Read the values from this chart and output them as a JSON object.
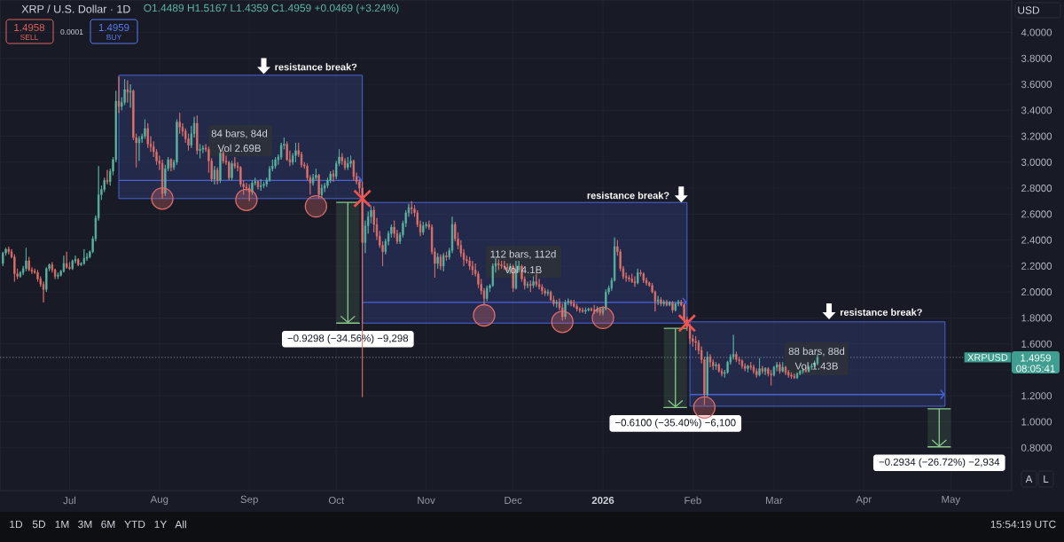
{
  "chart_data": {
    "type": "candlestick",
    "title": "XRP / U.S. Dollar · 1D",
    "subtitle": "O1.4489 H1.5167 L1.4359 C1.4959 +0.0469 (+3.24%)",
    "x": [
      "2025-06-08",
      "2025-06-09",
      "2025-06-10",
      "2025-06-11",
      "2025-06-12",
      "2025-06-13",
      "2025-06-14",
      "2025-06-15",
      "2025-06-16",
      "2025-06-17",
      "2025-06-18",
      "2025-06-19",
      "2025-06-20",
      "2025-06-21",
      "2025-06-22",
      "2025-06-23",
      "2025-06-24",
      "2025-06-25",
      "2025-06-26",
      "2025-06-27",
      "2025-06-28",
      "2025-06-29",
      "2025-06-30",
      "2025-07-01",
      "2025-07-02",
      "2025-07-03",
      "2025-07-04",
      "2025-07-05",
      "2025-07-06",
      "2025-07-07",
      "2025-07-08",
      "2025-07-09",
      "2025-07-10",
      "2025-07-11",
      "2025-07-12",
      "2025-07-13",
      "2025-07-14",
      "2025-07-15",
      "2025-07-16",
      "2025-07-17",
      "2025-07-18",
      "2025-07-19",
      "2025-07-20",
      "2025-07-21",
      "2025-07-22",
      "2025-07-23",
      "2025-07-24",
      "2025-07-25",
      "2025-07-26",
      "2025-07-27",
      "2025-07-28",
      "2025-07-29",
      "2025-07-30",
      "2025-07-31",
      "2025-08-01",
      "2025-08-02",
      "2025-08-03",
      "2025-08-04",
      "2025-08-05",
      "2025-08-06",
      "2025-08-07",
      "2025-08-08",
      "2025-08-09",
      "2025-08-10",
      "2025-08-11",
      "2025-08-12",
      "2025-08-13",
      "2025-08-14",
      "2025-08-15",
      "2025-08-16",
      "2025-08-17",
      "2025-08-18",
      "2025-08-19",
      "2025-08-20",
      "2025-08-21",
      "2025-08-22",
      "2025-08-23",
      "2025-08-24",
      "2025-08-25",
      "2025-08-26",
      "2025-08-27",
      "2025-08-28",
      "2025-08-29",
      "2025-08-30",
      "2025-08-31",
      "2025-09-01",
      "2025-09-02",
      "2025-09-03",
      "2025-09-04",
      "2025-09-05",
      "2025-09-06",
      "2025-09-07",
      "2025-09-08",
      "2025-09-09",
      "2025-09-10",
      "2025-09-11",
      "2025-09-12",
      "2025-09-13",
      "2025-09-14",
      "2025-09-15",
      "2025-09-16",
      "2025-09-17",
      "2025-09-18",
      "2025-09-19",
      "2025-09-20",
      "2025-09-21",
      "2025-09-22",
      "2025-09-23",
      "2025-09-24",
      "2025-09-25",
      "2025-09-26",
      "2025-09-27",
      "2025-09-28",
      "2025-09-29",
      "2025-09-30",
      "2025-10-01",
      "2025-10-02",
      "2025-10-03",
      "2025-10-04",
      "2025-10-05",
      "2025-10-06",
      "2025-10-07",
      "2025-10-08",
      "2025-10-09",
      "2025-10-10",
      "2025-10-11",
      "2025-10-12",
      "2025-10-13",
      "2025-10-14",
      "2025-10-15",
      "2025-10-16",
      "2025-10-17",
      "2025-10-18",
      "2025-10-19",
      "2025-10-20",
      "2025-10-21",
      "2025-10-22",
      "2025-10-23",
      "2025-10-24",
      "2025-10-25",
      "2025-10-26",
      "2025-10-27",
      "2025-10-28",
      "2025-10-29",
      "2025-10-30",
      "2025-10-31",
      "2025-11-01",
      "2025-11-02",
      "2025-11-03",
      "2025-11-04",
      "2025-11-05",
      "2025-11-06",
      "2025-11-07",
      "2025-11-08",
      "2025-11-09",
      "2025-11-10",
      "2025-11-11",
      "2025-11-12",
      "2025-11-13",
      "2025-11-14",
      "2025-11-15",
      "2025-11-16",
      "2025-11-17",
      "2025-11-18",
      "2025-11-19",
      "2025-11-20",
      "2025-11-21",
      "2025-11-22",
      "2025-11-23",
      "2025-11-24",
      "2025-11-25",
      "2025-11-26",
      "2025-11-27",
      "2025-11-28",
      "2025-11-29",
      "2025-11-30",
      "2025-12-01",
      "2025-12-02",
      "2025-12-03",
      "2025-12-04",
      "2025-12-05",
      "2025-12-06",
      "2025-12-07",
      "2025-12-08",
      "2025-12-09",
      "2025-12-10",
      "2025-12-11",
      "2025-12-12",
      "2025-12-13",
      "2025-12-14",
      "2025-12-15",
      "2025-12-16",
      "2025-12-17",
      "2025-12-18",
      "2025-12-19",
      "2025-12-20",
      "2025-12-21",
      "2025-12-22",
      "2025-12-23",
      "2025-12-24",
      "2025-12-25",
      "2025-12-26",
      "2025-12-27",
      "2025-12-28",
      "2025-12-29",
      "2025-12-30",
      "2025-12-31",
      "2026-01-01",
      "2026-01-02",
      "2026-01-03",
      "2026-01-04",
      "2026-01-05",
      "2026-01-06",
      "2026-01-07",
      "2026-01-08",
      "2026-01-09",
      "2026-01-10",
      "2026-01-11",
      "2026-01-12",
      "2026-01-13",
      "2026-01-14",
      "2026-01-15",
      "2026-01-16",
      "2026-01-17",
      "2026-01-18",
      "2026-01-19",
      "2026-01-20",
      "2026-01-21",
      "2026-01-22",
      "2026-01-23",
      "2026-01-24",
      "2026-01-25",
      "2026-01-26",
      "2026-01-27",
      "2026-01-28",
      "2026-01-29",
      "2026-01-30",
      "2026-01-31",
      "2026-02-01",
      "2026-02-02",
      "2026-02-03",
      "2026-02-04",
      "2026-02-05",
      "2026-02-06",
      "2026-02-07",
      "2026-02-08",
      "2026-02-09",
      "2026-02-10",
      "2026-02-11",
      "2026-02-12",
      "2026-02-13",
      "2026-02-14",
      "2026-02-15",
      "2026-02-16",
      "2026-02-17",
      "2026-02-18",
      "2026-02-19",
      "2026-02-20",
      "2026-02-21",
      "2026-02-22",
      "2026-02-23",
      "2026-02-24",
      "2026-02-25",
      "2026-02-26",
      "2026-02-27",
      "2026-02-28",
      "2026-03-01",
      "2026-03-02",
      "2026-03-03",
      "2026-03-04",
      "2026-03-05",
      "2026-03-06",
      "2026-03-07",
      "2026-03-08",
      "2026-03-09",
      "2026-03-10",
      "2026-03-11",
      "2026-03-12",
      "2026-03-13",
      "2026-03-14",
      "2026-03-15",
      "2026-03-16"
    ],
    "ohlc": [
      [
        2.22,
        2.31,
        2.2,
        2.3
      ],
      [
        2.3,
        2.34,
        2.28,
        2.33
      ],
      [
        2.33,
        2.35,
        2.29,
        2.31
      ],
      [
        2.31,
        2.33,
        2.26,
        2.27
      ],
      [
        2.27,
        2.29,
        2.08,
        2.14
      ],
      [
        2.14,
        2.18,
        2.1,
        2.12
      ],
      [
        2.12,
        2.16,
        2.11,
        2.15
      ],
      [
        2.15,
        2.2,
        2.13,
        2.18
      ],
      [
        2.18,
        2.34,
        2.16,
        2.24
      ],
      [
        2.24,
        2.27,
        2.16,
        2.17
      ],
      [
        2.17,
        2.19,
        2.14,
        2.16
      ],
      [
        2.16,
        2.18,
        2.14,
        2.15
      ],
      [
        2.15,
        2.17,
        2.08,
        2.1
      ],
      [
        2.1,
        2.12,
        2.04,
        2.06
      ],
      [
        2.06,
        2.08,
        1.92,
        2.02
      ],
      [
        2.02,
        2.19,
        2.0,
        2.18
      ],
      [
        2.18,
        2.22,
        2.16,
        2.21
      ],
      [
        2.21,
        2.23,
        2.15,
        2.17
      ],
      [
        2.17,
        2.18,
        2.1,
        2.12
      ],
      [
        2.12,
        2.15,
        2.1,
        2.13
      ],
      [
        2.13,
        2.17,
        2.12,
        2.16
      ],
      [
        2.16,
        2.28,
        2.15,
        2.22
      ],
      [
        2.22,
        2.31,
        2.18,
        2.19
      ],
      [
        2.19,
        2.23,
        2.17,
        2.18
      ],
      [
        2.18,
        2.25,
        2.17,
        2.24
      ],
      [
        2.24,
        2.28,
        2.22,
        2.25
      ],
      [
        2.25,
        2.26,
        2.2,
        2.21
      ],
      [
        2.21,
        2.23,
        2.2,
        2.22
      ],
      [
        2.22,
        2.33,
        2.21,
        2.26
      ],
      [
        2.26,
        2.3,
        2.24,
        2.27
      ],
      [
        2.27,
        2.32,
        2.26,
        2.31
      ],
      [
        2.31,
        2.43,
        2.3,
        2.41
      ],
      [
        2.41,
        2.59,
        2.39,
        2.57
      ],
      [
        2.57,
        2.97,
        2.55,
        2.75
      ],
      [
        2.75,
        2.82,
        2.71,
        2.79
      ],
      [
        2.79,
        2.88,
        2.77,
        2.86
      ],
      [
        2.86,
        2.94,
        2.83,
        2.85
      ],
      [
        2.85,
        2.95,
        2.82,
        2.93
      ],
      [
        2.93,
        3.04,
        2.9,
        3.02
      ],
      [
        3.02,
        3.55,
        3.0,
        3.47
      ],
      [
        3.47,
        3.66,
        3.38,
        3.43
      ],
      [
        3.43,
        3.5,
        3.4,
        3.46
      ],
      [
        3.46,
        3.64,
        3.44,
        3.56
      ],
      [
        3.56,
        3.63,
        3.46,
        3.54
      ],
      [
        3.54,
        3.6,
        3.42,
        3.55
      ],
      [
        3.55,
        3.56,
        3.17,
        3.19
      ],
      [
        3.19,
        3.22,
        2.96,
        3.15
      ],
      [
        3.15,
        3.2,
        3.01,
        3.18
      ],
      [
        3.18,
        3.22,
        3.15,
        3.2
      ],
      [
        3.2,
        3.33,
        3.18,
        3.26
      ],
      [
        3.26,
        3.3,
        3.11,
        3.14
      ],
      [
        3.14,
        3.2,
        3.08,
        3.12
      ],
      [
        3.12,
        3.16,
        3.04,
        3.08
      ],
      [
        3.08,
        3.1,
        2.98,
        3.01
      ],
      [
        3.01,
        3.05,
        2.94,
        2.99
      ],
      [
        2.99,
        3.02,
        2.72,
        2.76
      ],
      [
        2.76,
        2.98,
        2.74,
        2.95
      ],
      [
        2.95,
        3.04,
        2.93,
        3.02
      ],
      [
        3.02,
        3.03,
        2.93,
        2.96
      ],
      [
        2.96,
        3.02,
        2.94,
        3.0
      ],
      [
        3.0,
        3.33,
        2.98,
        3.31
      ],
      [
        3.31,
        3.38,
        3.22,
        3.27
      ],
      [
        3.27,
        3.3,
        3.2,
        3.24
      ],
      [
        3.24,
        3.26,
        3.15,
        3.18
      ],
      [
        3.18,
        3.22,
        3.09,
        3.13
      ],
      [
        3.13,
        3.28,
        3.11,
        3.22
      ],
      [
        3.22,
        3.35,
        3.19,
        3.3
      ],
      [
        3.3,
        3.36,
        3.06,
        3.09
      ],
      [
        3.09,
        3.14,
        3.03,
        3.1
      ],
      [
        3.1,
        3.13,
        3.07,
        3.11
      ],
      [
        3.11,
        3.14,
        3.08,
        3.1
      ],
      [
        3.1,
        3.12,
        2.92,
        3.01
      ],
      [
        3.01,
        3.03,
        2.85,
        2.87
      ],
      [
        2.87,
        2.97,
        2.83,
        2.94
      ],
      [
        2.94,
        2.96,
        2.83,
        2.86
      ],
      [
        2.86,
        3.09,
        2.84,
        3.07
      ],
      [
        3.07,
        3.09,
        2.99,
        3.01
      ],
      [
        3.01,
        3.05,
        2.98,
        3.0
      ],
      [
        3.0,
        3.01,
        2.86,
        2.88
      ],
      [
        2.88,
        3.01,
        2.86,
        2.99
      ],
      [
        2.99,
        3.04,
        2.95,
        2.97
      ],
      [
        2.97,
        3.0,
        2.93,
        2.96
      ],
      [
        2.96,
        2.97,
        2.81,
        2.83
      ],
      [
        2.83,
        2.86,
        2.75,
        2.81
      ],
      [
        2.81,
        2.84,
        2.78,
        2.8
      ],
      [
        2.8,
        2.83,
        2.7,
        2.77
      ],
      [
        2.77,
        2.86,
        2.75,
        2.84
      ],
      [
        2.84,
        2.88,
        2.82,
        2.85
      ],
      [
        2.85,
        2.86,
        2.79,
        2.81
      ],
      [
        2.81,
        2.87,
        2.78,
        2.82
      ],
      [
        2.82,
        2.85,
        2.8,
        2.83
      ],
      [
        2.83,
        2.88,
        2.81,
        2.86
      ],
      [
        2.86,
        2.97,
        2.85,
        2.95
      ],
      [
        2.95,
        3.02,
        2.93,
        2.97
      ],
      [
        2.97,
        3.04,
        2.95,
        3.02
      ],
      [
        3.02,
        3.06,
        2.98,
        3.04
      ],
      [
        3.04,
        3.15,
        3.02,
        3.13
      ],
      [
        3.13,
        3.19,
        3.1,
        3.14
      ],
      [
        3.14,
        3.16,
        3.01,
        3.02
      ],
      [
        3.02,
        3.09,
        2.97,
        3.0
      ],
      [
        3.0,
        3.07,
        2.98,
        3.05
      ],
      [
        3.05,
        3.15,
        3.0,
        3.09
      ],
      [
        3.09,
        3.15,
        3.04,
        3.06
      ],
      [
        3.06,
        3.08,
        2.96,
        2.98
      ],
      [
        2.98,
        3.0,
        2.95,
        2.97
      ],
      [
        2.97,
        2.99,
        2.86,
        2.88
      ],
      [
        2.88,
        2.9,
        2.75,
        2.84
      ],
      [
        2.84,
        2.91,
        2.82,
        2.88
      ],
      [
        2.88,
        2.95,
        2.86,
        2.9
      ],
      [
        2.9,
        2.91,
        2.72,
        2.75
      ],
      [
        2.75,
        2.83,
        2.73,
        2.8
      ],
      [
        2.8,
        2.84,
        2.77,
        2.82
      ],
      [
        2.82,
        2.88,
        2.8,
        2.86
      ],
      [
        2.86,
        2.93,
        2.84,
        2.91
      ],
      [
        2.91,
        2.94,
        2.85,
        2.89
      ],
      [
        2.89,
        3.01,
        2.87,
        2.99
      ],
      [
        2.99,
        3.1,
        2.97,
        3.04
      ],
      [
        3.04,
        3.07,
        2.98,
        3.01
      ],
      [
        3.01,
        3.03,
        2.94,
        2.96
      ],
      [
        2.96,
        3.04,
        2.94,
        2.99
      ],
      [
        2.99,
        3.05,
        2.96,
        3.01
      ],
      [
        3.01,
        3.02,
        2.86,
        2.89
      ],
      [
        2.89,
        2.92,
        2.83,
        2.85
      ],
      [
        2.85,
        2.87,
        2.76,
        2.8
      ],
      [
        2.8,
        2.85,
        1.19,
        2.38
      ],
      [
        2.38,
        2.55,
        2.3,
        2.51
      ],
      [
        2.51,
        2.62,
        2.45,
        2.58
      ],
      [
        2.58,
        2.66,
        2.53,
        2.63
      ],
      [
        2.63,
        2.66,
        2.46,
        2.52
      ],
      [
        2.52,
        2.57,
        2.4,
        2.43
      ],
      [
        2.43,
        2.47,
        2.34,
        2.36
      ],
      [
        2.36,
        2.39,
        2.2,
        2.31
      ],
      [
        2.31,
        2.41,
        2.29,
        2.39
      ],
      [
        2.39,
        2.47,
        2.36,
        2.45
      ],
      [
        2.45,
        2.52,
        2.42,
        2.5
      ],
      [
        2.5,
        2.55,
        2.42,
        2.45
      ],
      [
        2.45,
        2.48,
        2.37,
        2.39
      ],
      [
        2.39,
        2.46,
        2.37,
        2.44
      ],
      [
        2.44,
        2.55,
        2.42,
        2.53
      ],
      [
        2.53,
        2.63,
        2.5,
        2.61
      ],
      [
        2.61,
        2.68,
        2.58,
        2.65
      ],
      [
        2.65,
        2.7,
        2.6,
        2.64
      ],
      [
        2.64,
        2.67,
        2.58,
        2.61
      ],
      [
        2.61,
        2.63,
        2.5,
        2.52
      ],
      [
        2.52,
        2.55,
        2.43,
        2.46
      ],
      [
        2.46,
        2.54,
        2.44,
        2.51
      ],
      [
        2.51,
        2.54,
        2.49,
        2.52
      ],
      [
        2.52,
        2.55,
        2.48,
        2.5
      ],
      [
        2.5,
        2.52,
        2.29,
        2.31
      ],
      [
        2.31,
        2.34,
        2.11,
        2.22
      ],
      [
        2.22,
        2.3,
        2.18,
        2.27
      ],
      [
        2.27,
        2.29,
        2.17,
        2.2
      ],
      [
        2.2,
        2.3,
        2.16,
        2.28
      ],
      [
        2.28,
        2.31,
        2.24,
        2.27
      ],
      [
        2.27,
        2.34,
        2.25,
        2.32
      ],
      [
        2.32,
        2.58,
        2.3,
        2.52
      ],
      [
        2.52,
        2.54,
        2.39,
        2.41
      ],
      [
        2.41,
        2.46,
        2.33,
        2.36
      ],
      [
        2.36,
        2.4,
        2.27,
        2.3
      ],
      [
        2.3,
        2.33,
        2.2,
        2.25
      ],
      [
        2.25,
        2.28,
        2.22,
        2.24
      ],
      [
        2.24,
        2.27,
        2.17,
        2.2
      ],
      [
        2.2,
        2.24,
        2.13,
        2.17
      ],
      [
        2.17,
        2.22,
        2.12,
        2.14
      ],
      [
        2.14,
        2.16,
        2.03,
        2.06
      ],
      [
        2.06,
        2.1,
        1.98,
        2.01
      ],
      [
        2.01,
        2.03,
        1.9,
        1.95
      ],
      [
        1.95,
        2.05,
        1.93,
        2.03
      ],
      [
        2.03,
        2.06,
        2.0,
        2.05
      ],
      [
        2.05,
        2.22,
        2.04,
        2.2
      ],
      [
        2.2,
        2.26,
        2.15,
        2.22
      ],
      [
        2.22,
        2.25,
        2.17,
        2.21
      ],
      [
        2.21,
        2.24,
        2.18,
        2.2
      ],
      [
        2.2,
        2.24,
        2.17,
        2.19
      ],
      [
        2.19,
        2.22,
        2.16,
        2.18
      ],
      [
        2.18,
        2.22,
        2.14,
        2.2
      ],
      [
        2.2,
        2.21,
        2.0,
        2.03
      ],
      [
        2.03,
        2.24,
        2.02,
        2.17
      ],
      [
        2.17,
        2.24,
        2.15,
        2.2
      ],
      [
        2.2,
        2.21,
        2.08,
        2.1
      ],
      [
        2.1,
        2.12,
        2.02,
        2.05
      ],
      [
        2.05,
        2.08,
        2.03,
        2.06
      ],
      [
        2.06,
        2.09,
        2.0,
        2.05
      ],
      [
        2.05,
        2.12,
        2.03,
        2.08
      ],
      [
        2.08,
        2.14,
        2.04,
        2.06
      ],
      [
        2.06,
        2.1,
        2.02,
        2.04
      ],
      [
        2.04,
        2.06,
        1.98,
        2.01
      ],
      [
        2.01,
        2.03,
        1.97,
        1.99
      ],
      [
        1.99,
        2.02,
        1.97,
        2.0
      ],
      [
        2.0,
        2.01,
        1.93,
        1.94
      ],
      [
        1.94,
        1.97,
        1.89,
        1.91
      ],
      [
        1.91,
        1.94,
        1.88,
        1.92
      ],
      [
        1.92,
        1.95,
        1.86,
        1.88
      ],
      [
        1.88,
        1.91,
        1.78,
        1.81
      ],
      [
        1.81,
        1.94,
        1.79,
        1.92
      ],
      [
        1.92,
        1.95,
        1.9,
        1.93
      ],
      [
        1.93,
        1.94,
        1.89,
        1.91
      ],
      [
        1.91,
        1.94,
        1.88,
        1.89
      ],
      [
        1.89,
        1.91,
        1.85,
        1.87
      ],
      [
        1.87,
        1.88,
        1.84,
        1.86
      ],
      [
        1.86,
        1.88,
        1.84,
        1.85
      ],
      [
        1.85,
        1.88,
        1.83,
        1.86
      ],
      [
        1.86,
        1.88,
        1.85,
        1.87
      ],
      [
        1.87,
        1.88,
        1.85,
        1.86
      ],
      [
        1.86,
        1.9,
        1.83,
        1.85
      ],
      [
        1.85,
        1.89,
        1.84,
        1.87
      ],
      [
        1.87,
        1.88,
        1.82,
        1.84
      ],
      [
        1.84,
        1.89,
        1.82,
        1.87
      ],
      [
        1.87,
        2.02,
        1.86,
        2.0
      ],
      [
        2.0,
        2.05,
        1.98,
        2.03
      ],
      [
        2.03,
        2.11,
        2.01,
        2.09
      ],
      [
        2.09,
        2.42,
        2.08,
        2.35
      ],
      [
        2.35,
        2.4,
        2.28,
        2.31
      ],
      [
        2.31,
        2.33,
        2.16,
        2.18
      ],
      [
        2.18,
        2.2,
        2.1,
        2.12
      ],
      [
        2.12,
        2.15,
        2.08,
        2.11
      ],
      [
        2.11,
        2.13,
        2.08,
        2.1
      ],
      [
        2.1,
        2.14,
        2.07,
        2.08
      ],
      [
        2.08,
        2.12,
        2.04,
        2.07
      ],
      [
        2.07,
        2.18,
        2.06,
        2.15
      ],
      [
        2.15,
        2.17,
        2.12,
        2.14
      ],
      [
        2.14,
        2.15,
        2.07,
        2.09
      ],
      [
        2.09,
        2.11,
        2.05,
        2.07
      ],
      [
        2.07,
        2.08,
        2.04,
        2.05
      ],
      [
        2.05,
        2.07,
        1.99,
        2.0
      ],
      [
        2.0,
        2.01,
        1.85,
        1.93
      ],
      [
        1.93,
        1.97,
        1.9,
        1.94
      ],
      [
        1.94,
        1.96,
        1.89,
        1.91
      ],
      [
        1.91,
        1.94,
        1.89,
        1.92
      ],
      [
        1.92,
        1.94,
        1.89,
        1.9
      ],
      [
        1.9,
        1.93,
        1.89,
        1.92
      ],
      [
        1.92,
        1.93,
        1.84,
        1.86
      ],
      [
        1.86,
        1.92,
        1.85,
        1.91
      ],
      [
        1.91,
        1.94,
        1.89,
        1.92
      ],
      [
        1.92,
        1.94,
        1.89,
        1.9
      ],
      [
        1.9,
        1.91,
        1.76,
        1.79
      ],
      [
        1.79,
        1.81,
        1.7,
        1.73
      ],
      [
        1.73,
        1.75,
        1.6,
        1.64
      ],
      [
        1.64,
        1.67,
        1.58,
        1.62
      ],
      [
        1.62,
        1.66,
        1.55,
        1.61
      ],
      [
        1.61,
        1.63,
        1.52,
        1.55
      ],
      [
        1.55,
        1.58,
        1.45,
        1.48
      ],
      [
        1.48,
        1.5,
        1.13,
        1.21
      ],
      [
        1.21,
        1.54,
        1.19,
        1.5
      ],
      [
        1.5,
        1.52,
        1.42,
        1.46
      ],
      [
        1.46,
        1.48,
        1.4,
        1.43
      ],
      [
        1.43,
        1.46,
        1.4,
        1.44
      ],
      [
        1.44,
        1.45,
        1.38,
        1.39
      ],
      [
        1.39,
        1.41,
        1.35,
        1.37
      ],
      [
        1.37,
        1.4,
        1.34,
        1.38
      ],
      [
        1.38,
        1.47,
        1.37,
        1.46
      ],
      [
        1.46,
        1.52,
        1.44,
        1.5
      ],
      [
        1.5,
        1.67,
        1.48,
        1.52
      ],
      [
        1.52,
        1.54,
        1.46,
        1.48
      ],
      [
        1.48,
        1.5,
        1.44,
        1.47
      ],
      [
        1.47,
        1.48,
        1.41,
        1.43
      ],
      [
        1.43,
        1.45,
        1.39,
        1.41
      ],
      [
        1.41,
        1.44,
        1.38,
        1.43
      ],
      [
        1.43,
        1.46,
        1.4,
        1.42
      ],
      [
        1.42,
        1.44,
        1.37,
        1.39
      ],
      [
        1.39,
        1.41,
        1.34,
        1.36
      ],
      [
        1.36,
        1.49,
        1.35,
        1.41
      ],
      [
        1.41,
        1.43,
        1.37,
        1.39
      ],
      [
        1.39,
        1.42,
        1.36,
        1.41
      ],
      [
        1.41,
        1.42,
        1.35,
        1.37
      ],
      [
        1.37,
        1.4,
        1.28,
        1.36
      ],
      [
        1.36,
        1.43,
        1.35,
        1.42
      ],
      [
        1.42,
        1.46,
        1.39,
        1.44
      ],
      [
        1.44,
        1.46,
        1.37,
        1.39
      ],
      [
        1.39,
        1.46,
        1.38,
        1.42
      ],
      [
        1.42,
        1.43,
        1.36,
        1.38
      ],
      [
        1.38,
        1.4,
        1.34,
        1.36
      ],
      [
        1.36,
        1.38,
        1.33,
        1.35
      ],
      [
        1.35,
        1.37,
        1.33,
        1.34
      ],
      [
        1.34,
        1.38,
        1.33,
        1.37
      ],
      [
        1.37,
        1.4,
        1.36,
        1.39
      ],
      [
        1.39,
        1.41,
        1.37,
        1.4
      ],
      [
        1.4,
        1.42,
        1.38,
        1.39
      ],
      [
        1.39,
        1.43,
        1.38,
        1.42
      ],
      [
        1.42,
        1.45,
        1.4,
        1.43
      ],
      [
        1.43,
        1.47,
        1.42,
        1.45
      ],
      [
        1.4489,
        1.5167,
        1.4359,
        1.4959
      ]
    ],
    "colors": [
      "#5bb5a3",
      "#5bb5a3",
      "#e2716c",
      "#e2716c",
      "#e2716c",
      "#e2716c",
      "#5bb5a3",
      "#5bb5a3",
      "#5bb5a3",
      "#e2716c",
      "#e2716c",
      "#e2716c",
      "#e2716c",
      "#e2716c",
      "#e2716c",
      "#5bb5a3",
      "#5bb5a3",
      "#e2716c",
      "#e2716c",
      "#5bb5a3",
      "#5bb5a3",
      "#5bb5a3",
      "#e2716c",
      "#e2716c",
      "#5bb5a3",
      "#5bb5a3",
      "#e2716c",
      "#5bb5a3",
      "#5bb5a3",
      "#5bb5a3",
      "#5bb5a3",
      "#5bb5a3",
      "#5bb5a3",
      "#5bb5a3",
      "#5bb5a3",
      "#5bb5a3",
      "#e2716c",
      "#5bb5a3",
      "#5bb5a3",
      "#5bb5a3",
      "#e2716c",
      "#5bb5a3",
      "#5bb5a3",
      "#e2716c",
      "#5bb5a3",
      "#e2716c",
      "#e2716c",
      "#5bb5a3",
      "#5bb5a3",
      "#5bb5a3",
      "#e2716c",
      "#e2716c",
      "#e2716c",
      "#e2716c",
      "#e2716c",
      "#e2716c",
      "#5bb5a3",
      "#5bb5a3",
      "#e2716c",
      "#5bb5a3",
      "#5bb5a3",
      "#e2716c",
      "#e2716c",
      "#e2716c",
      "#e2716c",
      "#5bb5a3",
      "#5bb5a3",
      "#e2716c",
      "#5bb5a3",
      "#5bb5a3",
      "#e2716c",
      "#e2716c",
      "#e2716c",
      "#5bb5a3",
      "#e2716c",
      "#5bb5a3",
      "#e2716c",
      "#e2716c",
      "#e2716c",
      "#5bb5a3",
      "#e2716c",
      "#e2716c",
      "#e2716c",
      "#e2716c",
      "#e2716c",
      "#e2716c",
      "#5bb5a3",
      "#5bb5a3",
      "#e2716c",
      "#5bb5a3",
      "#5bb5a3",
      "#5bb5a3",
      "#5bb5a3",
      "#5bb5a3",
      "#5bb5a3",
      "#5bb5a3",
      "#5bb5a3",
      "#5bb5a3",
      "#e2716c",
      "#e2716c",
      "#5bb5a3",
      "#5bb5a3",
      "#e2716c",
      "#e2716c",
      "#e2716c",
      "#e2716c",
      "#e2716c",
      "#5bb5a3",
      "#5bb5a3",
      "#e2716c",
      "#5bb5a3",
      "#5bb5a3",
      "#5bb5a3",
      "#5bb5a3",
      "#e2716c",
      "#5bb5a3",
      "#5bb5a3",
      "#e2716c",
      "#e2716c",
      "#5bb5a3",
      "#5bb5a3",
      "#e2716c",
      "#e2716c",
      "#e2716c",
      "#e2716c",
      "#5bb5a3",
      "#5bb5a3",
      "#5bb5a3",
      "#e2716c",
      "#e2716c",
      "#e2716c",
      "#e2716c",
      "#5bb5a3",
      "#5bb5a3",
      "#5bb5a3",
      "#e2716c",
      "#e2716c",
      "#5bb5a3",
      "#5bb5a3",
      "#5bb5a3",
      "#5bb5a3",
      "#e2716c",
      "#e2716c",
      "#e2716c",
      "#e2716c",
      "#5bb5a3",
      "#5bb5a3",
      "#e2716c",
      "#e2716c",
      "#e2716c",
      "#5bb5a3",
      "#e2716c",
      "#5bb5a3",
      "#e2716c",
      "#5bb5a3",
      "#5bb5a3",
      "#e2716c",
      "#e2716c",
      "#e2716c",
      "#e2716c",
      "#e2716c",
      "#e2716c",
      "#e2716c",
      "#e2716c",
      "#e2716c",
      "#e2716c",
      "#e2716c",
      "#5bb5a3",
      "#5bb5a3",
      "#5bb5a3",
      "#5bb5a3",
      "#e2716c",
      "#e2716c",
      "#e2716c",
      "#e2716c",
      "#5bb5a3",
      "#e2716c",
      "#5bb5a3",
      "#5bb5a3",
      "#e2716c",
      "#e2716c",
      "#5bb5a3",
      "#e2716c",
      "#5bb5a3",
      "#e2716c",
      "#e2716c",
      "#e2716c",
      "#e2716c",
      "#5bb5a3",
      "#e2716c",
      "#e2716c",
      "#5bb5a3",
      "#e2716c",
      "#e2716c",
      "#5bb5a3",
      "#5bb5a3",
      "#e2716c",
      "#e2716c",
      "#e2716c",
      "#e2716c",
      "#e2716c",
      "#5bb5a3",
      "#5bb5a3",
      "#e2716c",
      "#e2716c",
      "#5bb5a3",
      "#e2716c",
      "#5bb5a3",
      "#5bb5a3",
      "#5bb5a3",
      "#5bb5a3",
      "#5bb5a3",
      "#e2716c",
      "#e2716c",
      "#e2716c",
      "#e2716c",
      "#e2716c",
      "#e2716c",
      "#e2716c",
      "#5bb5a3",
      "#e2716c",
      "#e2716c",
      "#e2716c",
      "#e2716c",
      "#e2716c",
      "#e2716c",
      "#5bb5a3",
      "#e2716c",
      "#5bb5a3",
      "#e2716c",
      "#5bb5a3",
      "#e2716c",
      "#5bb5a3",
      "#5bb5a3",
      "#e2716c",
      "#e2716c",
      "#e2716c",
      "#e2716c",
      "#e2716c",
      "#e2716c",
      "#e2716c",
      "#e2716c",
      "#e2716c",
      "#5bb5a3",
      "#e2716c",
      "#e2716c",
      "#5bb5a3",
      "#e2716c",
      "#e2716c",
      "#5bb5a3",
      "#5bb5a3",
      "#5bb5a3",
      "#5bb5a3",
      "#e2716c",
      "#e2716c",
      "#e2716c",
      "#e2716c",
      "#5bb5a3",
      "#e2716c",
      "#e2716c",
      "#e2716c",
      "#5bb5a3",
      "#e2716c",
      "#5bb5a3",
      "#e2716c",
      "#e2716c",
      "#5bb5a3",
      "#5bb5a3",
      "#e2716c",
      "#5bb5a3",
      "#e2716c",
      "#e2716c",
      "#e2716c",
      "#e2716c",
      "#5bb5a3",
      "#5bb5a3",
      "#5bb5a3",
      "#e2716c",
      "#5bb5a3",
      "#5bb5a3",
      "#5bb5a3",
      "#5bb5a3"
    ],
    "xlim": [
      "2025-06-07",
      "2026-05-22"
    ],
    "xticks": [
      {
        "value": "2025-07-01",
        "label": "Jul"
      },
      {
        "value": "2025-08-01",
        "label": "Aug"
      },
      {
        "value": "2025-09-01",
        "label": "Sep"
      },
      {
        "value": "2025-10-01",
        "label": "Oct"
      },
      {
        "value": "2025-11-01",
        "label": "Nov"
      },
      {
        "value": "2025-12-01",
        "label": "Dec"
      },
      {
        "value": "2026-01-01",
        "label": "2026"
      },
      {
        "value": "2026-02-01",
        "label": "Feb"
      },
      {
        "value": "2026-03-01",
        "label": "Mar"
      },
      {
        "value": "2026-04-01",
        "label": "Apr"
      },
      {
        "value": "2026-05-01",
        "label": "May"
      }
    ],
    "ylim": [
      0.47,
      4.25
    ],
    "yticks": [
      {
        "value": 0.8,
        "label": "0.8000"
      },
      {
        "value": 1.0,
        "label": "1.0000"
      },
      {
        "value": 1.2,
        "label": "1.2000"
      },
      {
        "value": 1.4,
        "label": null
      },
      {
        "value": 1.6,
        "label": "1.6000"
      },
      {
        "value": 1.8,
        "label": "1.8000"
      },
      {
        "value": 2.0,
        "label": "2.0000"
      },
      {
        "value": 2.2,
        "label": "2.2000"
      },
      {
        "value": 2.4,
        "label": "2.4000"
      },
      {
        "value": 2.6,
        "label": "2.6000"
      },
      {
        "value": 2.8,
        "label": "2.8000"
      },
      {
        "value": 3.0,
        "label": "3.0000"
      },
      {
        "value": 3.2,
        "label": "3.2000"
      },
      {
        "value": 3.4,
        "label": "3.4000"
      },
      {
        "value": 3.6,
        "label": "3.6000"
      },
      {
        "value": 3.8,
        "label": "3.8000"
      },
      {
        "value": 4.0,
        "label": "4.0000"
      }
    ],
    "grid": true,
    "series": [
      {
        "type": "line",
        "color": "#4a64d8",
        "x": [
          "2025-07-18",
          "2025-10-10"
        ],
        "values": [
          2.86,
          2.86
        ],
        "lower": [
          2.72,
          2.72
        ],
        "upper": [
          3.67,
          3.67
        ]
      },
      {
        "type": "line",
        "color": "#4b65da",
        "x": [
          "2025-10-10",
          "2026-01-30"
        ],
        "values": [
          1.92,
          1.92
        ],
        "lower": [
          1.76,
          1.76
        ],
        "upper": [
          2.69,
          2.69
        ]
      },
      {
        "type": "line",
        "color": "#4962d6",
        "x": [
          "2026-01-31",
          "2026-04-29"
        ],
        "values": [
          1.21,
          1.21
        ],
        "lower": [
          1.12,
          1.12
        ],
        "upper": [
          1.77,
          1.77
        ]
      },
      {
        "type": "bar",
        "color": "#8bc98d",
        "x": [
          "2025-10-05",
          "2026-01-26",
          "2026-04-27"
        ],
        "base": [
          2.69,
          1.72,
          1.1
        ],
        "values": [
          -0.9298,
          -0.61,
          -0.2934
        ],
        "value_labels": [
          "−0.9298 (−34.56%) −9,298",
          "−0.6100 (−35.40%) −6,100",
          "−0.2934 (−26.72%) −2,934"
        ]
      },
      {
        "type": "scatter",
        "color": "#e06c6c",
        "marker": "circle",
        "x": [
          "2025-08-02",
          "2025-08-31",
          "2025-09-24",
          "2025-11-21",
          "2025-12-18",
          "2026-01-01",
          "2026-02-05"
        ],
        "values": [
          2.72,
          2.71,
          2.66,
          1.82,
          1.77,
          1.8,
          1.11
        ]
      },
      {
        "type": "scatter",
        "color": "#f0524f",
        "marker": "cross",
        "x": [
          "2025-10-10",
          "2026-01-30"
        ],
        "values": [
          2.72,
          1.76
        ]
      }
    ],
    "ref_lines": [
      {
        "axis": "y",
        "value": 1.4959,
        "label": "XRPUSD",
        "color": "#8a8f98",
        "line_style": "dotted"
      }
    ],
    "annotations": [
      {
        "text": "resistance break?",
        "x": "2025-09-06",
        "y": 3.68
      },
      {
        "text": "resistance break?",
        "x": "2026-01-28",
        "y": 2.69
      },
      {
        "text": "resistance break?",
        "x": "2026-03-20",
        "y": 1.79
      },
      "84 bars, 84d",
      "Vol 2.69B",
      "112 bars, 112d",
      "Vol 4.1B",
      "88 bars, 88d",
      "Vol 1.43B",
      "1.4958",
      "SELL",
      "0.0001",
      "1.4959",
      "BUY",
      "USD",
      "1.4959",
      "08:05:41",
      "A",
      "L",
      "1D",
      "5D",
      "1M",
      "3M",
      "6M",
      "YTD",
      "1Y",
      "All",
      "15:54:19 UTC"
    ]
  }
}
